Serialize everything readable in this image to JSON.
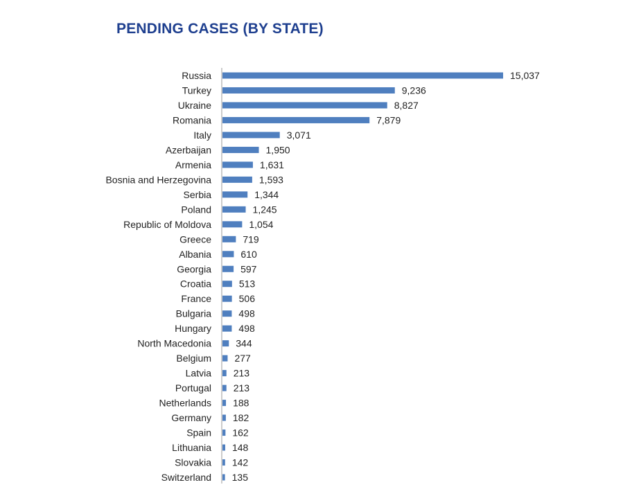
{
  "chart_data": {
    "type": "bar",
    "orientation": "horizontal",
    "title": "PENDING CASES (BY STATE)",
    "xlabel": "",
    "ylabel": "",
    "grid": false,
    "bar_color": "#4f7fbf",
    "title_color": "#1e3f8f",
    "categories": [
      "Russia",
      "Turkey",
      "Ukraine",
      "Romania",
      "Italy",
      "Azerbaijan",
      "Armenia",
      "Bosnia and Herzegovina",
      "Serbia",
      "Poland",
      "Republic of Moldova",
      "Greece",
      "Albania",
      "Georgia",
      "Croatia",
      "France",
      "Bulgaria",
      "Hungary",
      "North Macedonia",
      "Belgium",
      "Latvia",
      "Portugal",
      "Netherlands",
      "Germany",
      "Spain",
      "Lithuania",
      "Slovakia",
      "Switzerland"
    ],
    "values": [
      15037,
      9236,
      8827,
      7879,
      3071,
      1950,
      1631,
      1593,
      1344,
      1245,
      1054,
      719,
      610,
      597,
      513,
      506,
      498,
      498,
      344,
      277,
      213,
      213,
      188,
      182,
      162,
      148,
      142,
      135
    ],
    "value_labels": [
      "15,037",
      "9,236",
      "8,827",
      "7,879",
      "3,071",
      "1,950",
      "1,631",
      "1,593",
      "1,344",
      "1,245",
      "1,054",
      "719",
      "610",
      "597",
      "513",
      "506",
      "498",
      "498",
      "344",
      "277",
      "213",
      "213",
      "188",
      "182",
      "162",
      "148",
      "142",
      "135"
    ],
    "xlim": [
      0,
      15037
    ]
  }
}
